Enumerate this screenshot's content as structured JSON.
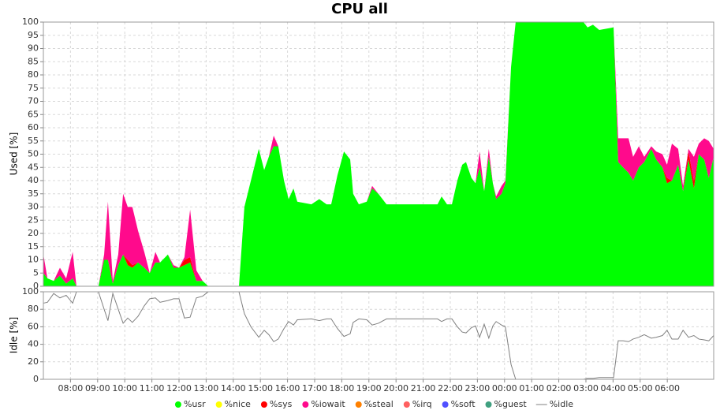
{
  "chart_data": {
    "type": "area",
    "stacked": true,
    "title": "CPU all",
    "ylabel": "Used [%]",
    "y2label": "Idle [%]",
    "grid": true,
    "xlim": [
      7,
      31.71
    ],
    "xticks": [
      {
        "value": 8,
        "label": "08:00"
      },
      {
        "value": 9,
        "label": "09:00"
      },
      {
        "value": 10,
        "label": "10:00"
      },
      {
        "value": 11,
        "label": "11:00"
      },
      {
        "value": 12,
        "label": "12:00"
      },
      {
        "value": 13,
        "label": "13:00"
      },
      {
        "value": 14,
        "label": "14:00"
      },
      {
        "value": 15,
        "label": "15:00"
      },
      {
        "value": 16,
        "label": "16:00"
      },
      {
        "value": 17,
        "label": "17:00"
      },
      {
        "value": 18,
        "label": "18:00"
      },
      {
        "value": 19,
        "label": "19:00"
      },
      {
        "value": 20,
        "label": "20:00"
      },
      {
        "value": 21,
        "label": "21:00"
      },
      {
        "value": 22,
        "label": "22:00"
      },
      {
        "value": 23,
        "label": "23:00"
      },
      {
        "value": 24,
        "label": "00:00"
      },
      {
        "value": 25,
        "label": "01:00"
      },
      {
        "value": 26,
        "label": "02:00"
      },
      {
        "value": 27,
        "label": "03:00"
      },
      {
        "value": 28,
        "label": "04:00"
      },
      {
        "value": 29,
        "label": "05:00"
      },
      {
        "value": 30,
        "label": "06:00"
      }
    ],
    "ylim": [
      0,
      100
    ],
    "yticks": [
      0,
      5,
      10,
      15,
      20,
      25,
      30,
      35,
      40,
      45,
      50,
      55,
      60,
      65,
      70,
      75,
      80,
      85,
      90,
      95,
      100
    ],
    "y2lim": [
      0,
      100
    ],
    "y2ticks": [
      0,
      20,
      40,
      60,
      80,
      100
    ],
    "x": [
      7.0,
      7.15,
      7.38,
      7.61,
      7.84,
      8.08,
      8.22,
      9.03,
      9.24,
      9.38,
      9.56,
      9.76,
      9.94,
      10.11,
      10.28,
      10.49,
      10.72,
      10.92,
      11.13,
      11.3,
      11.59,
      11.8,
      12.0,
      12.2,
      12.41,
      12.64,
      12.87,
      13.08,
      14.21,
      14.41,
      14.65,
      14.94,
      15.14,
      15.31,
      15.49,
      15.66,
      15.87,
      16.04,
      16.22,
      16.36,
      16.88,
      17.17,
      17.44,
      17.61,
      17.84,
      18.08,
      18.31,
      18.42,
      18.63,
      18.92,
      19.12,
      19.35,
      19.65,
      19.94,
      20.52,
      20.81,
      21.24,
      21.53,
      21.68,
      21.88,
      22.06,
      22.26,
      22.44,
      22.58,
      22.78,
      22.93,
      23.08,
      23.25,
      23.42,
      23.57,
      23.69,
      23.89,
      24.03,
      24.24,
      24.41,
      26.91,
      27.06,
      27.26,
      27.49,
      28.02,
      28.19,
      28.37,
      28.57,
      28.74,
      28.95,
      29.15,
      29.41,
      29.59,
      29.82,
      29.99,
      30.17,
      30.4,
      30.58,
      30.78,
      30.98,
      31.16,
      31.36,
      31.53,
      31.71
    ],
    "series": [
      {
        "name": "%usr",
        "color": "#00ff00",
        "values": [
          5,
          3,
          2,
          4,
          1,
          3,
          0,
          0,
          10,
          10,
          1,
          8,
          12,
          8,
          7,
          9,
          7,
          5,
          9,
          9,
          12,
          7,
          7,
          8,
          9,
          2,
          2,
          0,
          0,
          30,
          40,
          52,
          44,
          49,
          53,
          53,
          40,
          33,
          37,
          32,
          31,
          33,
          31,
          31,
          42,
          51,
          48,
          35,
          31,
          32,
          37,
          35,
          31,
          31,
          31,
          31,
          31,
          31,
          34,
          31,
          31,
          40,
          46,
          47,
          41,
          39,
          45,
          36,
          49,
          39,
          33,
          35,
          39,
          83,
          100,
          100,
          98,
          99,
          97,
          98,
          47,
          45,
          43,
          40,
          45,
          47,
          52,
          48,
          45,
          39,
          40,
          46,
          36,
          48,
          37,
          50,
          48,
          41,
          49
        ]
      },
      {
        "name": "%nice",
        "color": "#ffff00",
        "values": [
          0,
          0,
          0,
          0,
          0,
          0,
          0,
          0,
          0,
          0,
          0,
          0,
          0,
          0,
          0,
          0,
          0,
          0,
          0,
          0,
          0,
          0,
          0,
          0,
          0,
          0,
          0,
          0,
          0,
          0,
          0,
          0,
          0,
          0,
          0,
          0,
          0,
          0,
          0,
          0,
          0,
          0,
          0,
          0,
          0,
          0,
          0,
          0,
          0,
          0,
          0,
          0,
          0,
          0,
          0,
          0,
          0,
          0,
          0,
          0,
          0,
          0,
          0,
          0,
          0,
          0,
          0,
          0,
          0,
          0,
          0,
          0,
          0,
          0,
          0,
          0,
          0,
          0,
          0,
          0,
          0,
          0,
          0,
          0,
          0,
          0,
          0,
          0,
          0,
          0,
          0,
          0,
          0,
          0,
          0,
          0,
          0,
          0,
          0
        ]
      },
      {
        "name": "%sys",
        "color": "#ff0000",
        "values": [
          0,
          0,
          0,
          0,
          0,
          0,
          0,
          0,
          0,
          0,
          0,
          0,
          0,
          2,
          1,
          0,
          0,
          0,
          0,
          0,
          0,
          0,
          0,
          2,
          2,
          0,
          0,
          0,
          0,
          0,
          0,
          0,
          0,
          0,
          0,
          0,
          0,
          0,
          0,
          0,
          0,
          0,
          0,
          0,
          0,
          0,
          0,
          0,
          0,
          0,
          0,
          0,
          0,
          0,
          0,
          0,
          0,
          0,
          0,
          0,
          0,
          0,
          0,
          0,
          0,
          0,
          0,
          0,
          0,
          0,
          0,
          0,
          0,
          0,
          0,
          0,
          0,
          0,
          0,
          0,
          0,
          0,
          0,
          0,
          0,
          0,
          0,
          0,
          0,
          2,
          0,
          0,
          0,
          3,
          3,
          0,
          0,
          0,
          0
        ]
      },
      {
        "name": "%iowait",
        "color": "#ff0a8c",
        "values": [
          7,
          0,
          0,
          3,
          2,
          10,
          0,
          0,
          2,
          22,
          1,
          4,
          23,
          20,
          22,
          12,
          6,
          0,
          4,
          0,
          0,
          1,
          0,
          1,
          18,
          4,
          0,
          0,
          0,
          0,
          0,
          0,
          0,
          0,
          4,
          0,
          0,
          0,
          0,
          0,
          0,
          0,
          0,
          0,
          0,
          0,
          0,
          0,
          0,
          0,
          1,
          0,
          0,
          0,
          0,
          0,
          0,
          0,
          0,
          0,
          0,
          0,
          0,
          0,
          0,
          0,
          6,
          0,
          3,
          0,
          1,
          3,
          1,
          0,
          0,
          0,
          0,
          0,
          0,
          0,
          9,
          11,
          13,
          9,
          8,
          2,
          1,
          3,
          5,
          5,
          14,
          6,
          2,
          1,
          9,
          4,
          8,
          14,
          3
        ]
      },
      {
        "name": "%steal",
        "color": "#ff8000",
        "values": [
          0,
          0,
          0,
          0,
          0,
          0,
          0,
          0,
          0,
          0,
          0,
          0,
          0,
          0,
          0,
          0,
          0,
          0,
          0,
          0,
          0,
          0,
          0,
          0,
          0,
          0,
          0,
          0,
          0,
          0,
          0,
          0,
          0,
          0,
          0,
          0,
          0,
          0,
          0,
          0,
          0,
          0,
          0,
          0,
          0,
          0,
          0,
          0,
          0,
          0,
          0,
          0,
          0,
          0,
          0,
          0,
          0,
          0,
          0,
          0,
          0,
          0,
          0,
          0,
          0,
          0,
          0,
          0,
          0,
          0,
          0,
          0,
          0,
          0,
          0,
          0,
          0,
          0,
          0,
          0,
          0,
          0,
          0,
          0,
          0,
          0,
          0,
          0,
          0,
          0,
          0,
          0,
          0,
          0,
          0,
          0,
          0,
          0,
          0
        ]
      },
      {
        "name": "%irq",
        "color": "#ff6060",
        "values": [
          0,
          0,
          0,
          0,
          0,
          0,
          0,
          0,
          0,
          0,
          0,
          0,
          0,
          0,
          0,
          0,
          0,
          0,
          0,
          0,
          0,
          0,
          0,
          0,
          0,
          0,
          0,
          0,
          0,
          0,
          0,
          0,
          0,
          0,
          0,
          0,
          0,
          0,
          0,
          0,
          0,
          0,
          0,
          0,
          0,
          0,
          0,
          0,
          0,
          0,
          0,
          0,
          0,
          0,
          0,
          0,
          0,
          0,
          0,
          0,
          0,
          0,
          0,
          0,
          0,
          0,
          0,
          0,
          0,
          0,
          0,
          0,
          0,
          0,
          0,
          0,
          0,
          0,
          0,
          0,
          0,
          0,
          0,
          0,
          0,
          0,
          0,
          0,
          0,
          0,
          0,
          0,
          0,
          0,
          0,
          0,
          0,
          0,
          0
        ]
      },
      {
        "name": "%soft",
        "color": "#5050ff",
        "values": [
          0,
          0,
          0,
          0,
          0,
          0,
          0,
          0,
          0,
          0,
          0,
          0,
          0,
          0,
          0,
          0,
          0,
          0,
          0,
          0,
          0,
          0,
          0,
          0,
          0,
          0,
          0,
          0,
          0,
          0,
          0,
          0,
          0,
          0,
          0,
          0,
          0,
          0,
          0,
          0,
          0,
          0,
          0,
          0,
          0,
          0,
          0,
          0,
          0,
          0,
          0,
          0,
          0,
          0,
          0,
          0,
          0,
          0,
          0,
          0,
          0,
          0,
          0,
          0,
          0,
          0,
          0,
          0,
          0,
          0,
          0,
          0,
          0,
          0,
          0,
          0,
          0,
          0,
          0,
          0,
          0,
          0,
          0,
          0,
          0,
          0,
          0,
          0,
          0,
          0,
          0,
          0,
          0,
          0,
          0,
          0,
          0,
          0,
          0
        ]
      },
      {
        "name": "%guest",
        "color": "#40a080",
        "values": [
          0,
          0,
          0,
          0,
          0,
          0,
          0,
          0,
          0,
          0,
          0,
          0,
          0,
          0,
          0,
          0,
          0,
          0,
          0,
          0,
          0,
          0,
          0,
          0,
          0,
          0,
          0,
          0,
          0,
          0,
          0,
          0,
          0,
          0,
          0,
          0,
          0,
          0,
          0,
          0,
          0,
          0,
          0,
          0,
          0,
          0,
          0,
          0,
          0,
          0,
          0,
          0,
          0,
          0,
          0,
          0,
          0,
          0,
          0,
          0,
          0,
          0,
          0,
          0,
          0,
          0,
          0,
          0,
          0,
          0,
          0,
          0,
          0,
          0,
          0,
          0,
          0,
          0,
          0,
          0,
          0,
          0,
          0,
          0,
          0,
          0,
          0,
          0,
          0,
          0,
          0,
          0,
          0,
          0,
          0,
          0,
          0,
          0,
          0
        ]
      },
      {
        "name": "%idle",
        "color": "#808080",
        "axis": "y2",
        "values": [
          87,
          88,
          98,
          93,
          96,
          87,
          100,
          100,
          80,
          67,
          98,
          80,
          64,
          70,
          65,
          72,
          84,
          92,
          93,
          88,
          90,
          92,
          92,
          70,
          71,
          93,
          95,
          100,
          100,
          75,
          60,
          48,
          56,
          51,
          43,
          46,
          58,
          66,
          62,
          68,
          69,
          67,
          69,
          69,
          58,
          49,
          52,
          65,
          69,
          68,
          62,
          64,
          69,
          69,
          69,
          69,
          69,
          69,
          66,
          69,
          69,
          60,
          54,
          53,
          59,
          61,
          48,
          63,
          47,
          61,
          66,
          62,
          60,
          17,
          0,
          0,
          1,
          1,
          2,
          2,
          44,
          44,
          43,
          46,
          48,
          51,
          47,
          48,
          50,
          56,
          46,
          46,
          56,
          48,
          50,
          46,
          45,
          44,
          50
        ]
      }
    ]
  }
}
